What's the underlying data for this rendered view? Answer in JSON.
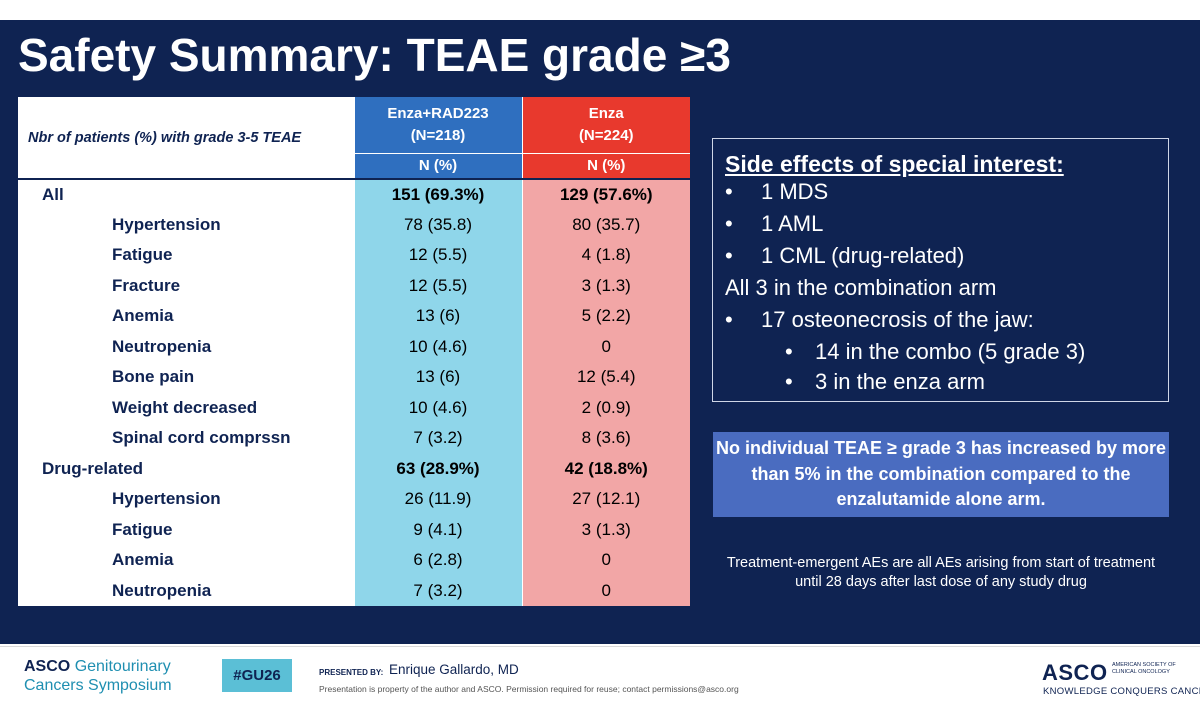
{
  "slide": {
    "title": "Safety Summary: TEAE grade ≥3"
  },
  "table": {
    "row_header_label": "Nbr of patients (%) with grade 3-5 TEAE",
    "col1_name": "Enza+RAD223",
    "col1_n": "(N=218)",
    "col2_name": "Enza",
    "col2_n": "(N=224)",
    "unit": "N (%)",
    "rows": [
      {
        "label": "All",
        "c1": "151 (69.3%)",
        "c2": "129 (57.6%)"
      },
      {
        "label": "Hypertension",
        "c1": "78 (35.8)",
        "c2": "80 (35.7)"
      },
      {
        "label": "Fatigue",
        "c1": "12 (5.5)",
        "c2": "4 (1.8)"
      },
      {
        "label": "Fracture",
        "c1": "12 (5.5)",
        "c2": "3 (1.3)"
      },
      {
        "label": "Anemia",
        "c1": "13 (6)",
        "c2": "5 (2.2)"
      },
      {
        "label": "Neutropenia",
        "c1": "10 (4.6)",
        "c2": "0"
      },
      {
        "label": "Bone pain",
        "c1": "13 (6)",
        "c2": "12 (5.4)"
      },
      {
        "label": "Weight decreased",
        "c1": "10 (4.6)",
        "c2": "2 (0.9)"
      },
      {
        "label": "Spinal cord comprssn",
        "c1": "7 (3.2)",
        "c2": "8 (3.6)"
      },
      {
        "label": "Drug-related",
        "c1": "63 (28.9%)",
        "c2": "42 (18.8%)"
      },
      {
        "label": "Hypertension",
        "c1": "26 (11.9)",
        "c2": "27 (12.1)"
      },
      {
        "label": "Fatigue",
        "c1": "9 (4.1)",
        "c2": "3 (1.3)"
      },
      {
        "label": "Anemia",
        "c1": "6 (2.8)",
        "c2": "0"
      },
      {
        "label": "Neutropenia",
        "c1": "7 (3.2)",
        "c2": "0"
      }
    ]
  },
  "side_effects": {
    "title": "Side effects of special interest:",
    "bullet": "•",
    "lines": [
      "1 MDS",
      "1 AML",
      "1 CML (drug-related)",
      "All  3 in the combination arm",
      "17  osteonecrosis of the jaw:",
      "14 in the combo (5 grade 3)",
      "3 in the enza arm"
    ]
  },
  "note": "No individual TEAE ≥ grade 3 has increased by more than 5% in the combination compared to the enzalutamide alone arm.",
  "footnote": "Treatment-emergent AEs are all AEs arising from start of treatment until 28 days after last dose of any study drug",
  "footer": {
    "asco_word": "ASCO",
    "symposium_line1": "Genitourinary",
    "symposium_line2": "Cancers Symposium",
    "hashtag": "#GU26",
    "presented_by_label": "PRESENTED BY:",
    "presenter": "Enrique Gallardo, MD",
    "disclaimer": "Presentation is property of the author and ASCO. Permission required for reuse; contact permissions@asco.org",
    "logo_text": "ASCO",
    "logo_small": "AMERICAN SOCIETY OF CLINICAL ONCOLOGY",
    "tagline": "KNOWLEDGE CONQUERS CANCER"
  },
  "colors": {
    "slide_bg": "#0f2352",
    "col1_header": "#2f6fbf",
    "col2_header": "#e8392d",
    "col1_cell": "#8fd6ea",
    "col2_cell": "#f2a6a6",
    "note_bg": "#4a6cc0"
  }
}
